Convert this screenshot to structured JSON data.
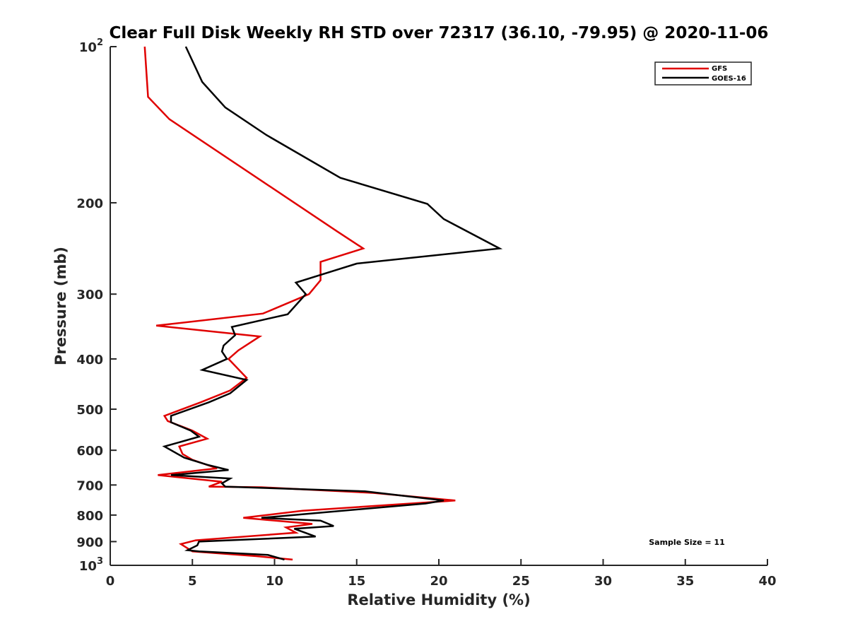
{
  "chart_data": {
    "type": "line",
    "title": "Clear Full Disk Weekly RH STD over 72317 (36.10, -79.95) @ 2020-11-06",
    "xlabel": "Relative Humidity (%)",
    "ylabel": "Pressure (mb)",
    "xlim": [
      0,
      40
    ],
    "ylim": [
      100,
      1000
    ],
    "yscale": "log",
    "y_reversed": true,
    "grid": false,
    "legend_position": "top-right",
    "x_ticks": [
      "0",
      "5",
      "10",
      "15",
      "20",
      "25",
      "30",
      "35",
      "40"
    ],
    "y_ticks": [
      {
        "value": 100,
        "base": "10",
        "exp": "2"
      },
      {
        "value": 200,
        "label": "200"
      },
      {
        "value": 300,
        "label": "300"
      },
      {
        "value": 400,
        "label": "400"
      },
      {
        "value": 500,
        "label": "500"
      },
      {
        "value": 600,
        "label": "600"
      },
      {
        "value": 700,
        "label": "700"
      },
      {
        "value": 800,
        "label": "800"
      },
      {
        "value": 900,
        "label": "900"
      },
      {
        "value": 1000,
        "base": "10",
        "exp": "3"
      }
    ],
    "annotation": "Sample Size = 11",
    "series": [
      {
        "name": "GFS",
        "color": "#e00000",
        "points": [
          [
            2.1,
            100
          ],
          [
            2.3,
            125
          ],
          [
            3.6,
            138
          ],
          [
            13.8,
            227
          ],
          [
            15.4,
            245
          ],
          [
            12.8,
            260
          ],
          [
            12.8,
            282
          ],
          [
            12.1,
            300
          ],
          [
            9.3,
            327
          ],
          [
            2.8,
            345
          ],
          [
            9.1,
            362
          ],
          [
            7.8,
            385
          ],
          [
            7.2,
            400
          ],
          [
            8.3,
            435
          ],
          [
            7.3,
            460
          ],
          [
            5.5,
            485
          ],
          [
            3.3,
            515
          ],
          [
            3.5,
            527
          ],
          [
            5.0,
            550
          ],
          [
            5.9,
            570
          ],
          [
            4.2,
            590
          ],
          [
            4.4,
            610
          ],
          [
            5.0,
            626
          ],
          [
            6.5,
            650
          ],
          [
            2.9,
            670
          ],
          [
            6.8,
            690
          ],
          [
            6.0,
            705
          ],
          [
            9.2,
            707
          ],
          [
            16.0,
            725
          ],
          [
            21.0,
            750
          ],
          [
            11.7,
            785
          ],
          [
            8.1,
            810
          ],
          [
            12.3,
            832
          ],
          [
            10.7,
            845
          ],
          [
            11.3,
            865
          ],
          [
            5.2,
            895
          ],
          [
            4.3,
            910
          ],
          [
            5.0,
            940
          ],
          [
            8.9,
            960
          ],
          [
            11.1,
            975
          ]
        ]
      },
      {
        "name": "GOES-16",
        "color": "#000000",
        "points": [
          [
            4.6,
            100
          ],
          [
            5.6,
            117
          ],
          [
            7.0,
            131
          ],
          [
            9.5,
            148
          ],
          [
            14.0,
            179
          ],
          [
            19.3,
            201
          ],
          [
            20.3,
            215
          ],
          [
            23.7,
            245
          ],
          [
            15.0,
            262
          ],
          [
            11.3,
            285
          ],
          [
            11.9,
            300
          ],
          [
            10.8,
            328
          ],
          [
            7.4,
            347
          ],
          [
            7.6,
            360
          ],
          [
            6.9,
            377
          ],
          [
            6.8,
            387
          ],
          [
            7.1,
            400
          ],
          [
            5.6,
            420
          ],
          [
            8.3,
            439
          ],
          [
            7.3,
            466
          ],
          [
            6.0,
            485
          ],
          [
            3.7,
            515
          ],
          [
            3.7,
            530
          ],
          [
            4.9,
            550
          ],
          [
            5.4,
            565
          ],
          [
            3.3,
            590
          ],
          [
            4.5,
            620
          ],
          [
            5.9,
            640
          ],
          [
            7.2,
            655
          ],
          [
            3.7,
            670
          ],
          [
            7.3,
            680
          ],
          [
            6.8,
            695
          ],
          [
            7.0,
            705
          ],
          [
            15.5,
            720
          ],
          [
            20.3,
            750
          ],
          [
            19.2,
            760
          ],
          [
            9.2,
            810
          ],
          [
            12.8,
            820
          ],
          [
            13.6,
            840
          ],
          [
            11.2,
            850
          ],
          [
            12.5,
            880
          ],
          [
            5.4,
            900
          ],
          [
            5.3,
            915
          ],
          [
            4.7,
            935
          ],
          [
            5.4,
            940
          ],
          [
            9.6,
            955
          ],
          [
            10.6,
            975
          ]
        ]
      }
    ]
  }
}
